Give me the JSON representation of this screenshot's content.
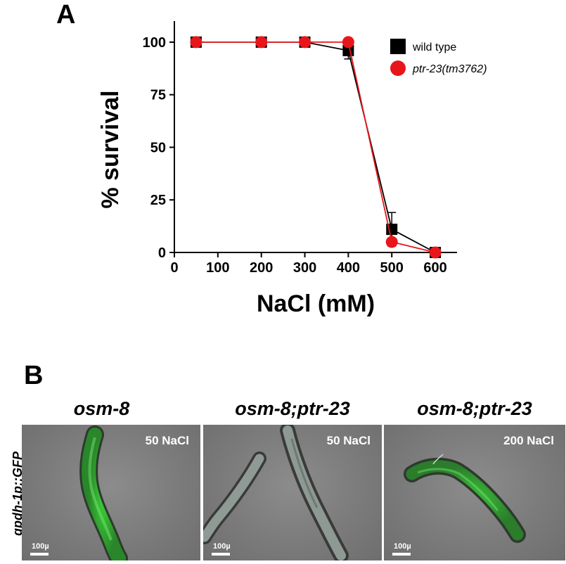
{
  "panel_a": {
    "letter": "A",
    "chart_data": {
      "type": "line",
      "title": "",
      "xlabel": "NaCl (mM)",
      "ylabel": "% survival",
      "xlim": [
        0,
        650
      ],
      "ylim": [
        0,
        110
      ],
      "xticks": [
        0,
        100,
        200,
        300,
        400,
        500,
        600
      ],
      "yticks": [
        0,
        25,
        50,
        75,
        100
      ],
      "legend_position": "top-right",
      "grid": false,
      "series": [
        {
          "name": "wild type",
          "marker": "square",
          "color": "#000000",
          "x": [
            50,
            200,
            300,
            400,
            500,
            600
          ],
          "y": [
            100,
            100,
            100,
            96,
            11,
            0
          ],
          "error": [
            0,
            0,
            0,
            4,
            8,
            0
          ]
        },
        {
          "name": "ptr-23(tm3762)",
          "marker": "circle",
          "color": "#e8161b",
          "x": [
            50,
            200,
            300,
            400,
            500,
            600
          ],
          "y": [
            100,
            100,
            100,
            100,
            5,
            0
          ],
          "error": [
            0,
            0,
            0,
            0,
            0,
            0
          ]
        }
      ]
    }
  },
  "panel_b": {
    "letter": "B",
    "side_label": "gpdh-1p::GFP",
    "images": [
      {
        "title": "osm-8",
        "condition": "50 NaCl",
        "scale": "100µ"
      },
      {
        "title": "osm-8;ptr-23",
        "condition": "50 NaCl",
        "scale": "100µ"
      },
      {
        "title": "osm-8;ptr-23",
        "condition": "200 NaCl",
        "scale": "100µ"
      }
    ]
  }
}
